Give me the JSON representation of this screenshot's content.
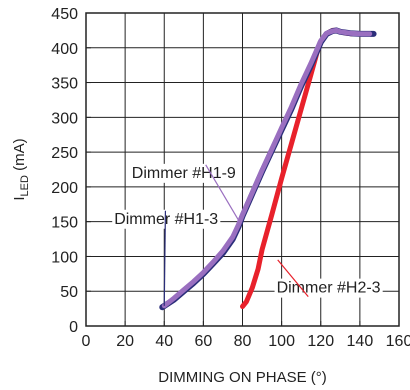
{
  "chart_data": {
    "type": "line",
    "xlabel": "DIMMING ON PHASE (°)",
    "ylabel_main": "I",
    "ylabel_sub": "LED",
    "ylabel_tail": " (mA)",
    "xlim": [
      0,
      160
    ],
    "ylim": [
      0,
      450
    ],
    "xticks": [
      "0",
      "20",
      "40",
      "60",
      "80",
      "100",
      "120",
      "140",
      "160"
    ],
    "yticks": [
      "0",
      "50",
      "100",
      "150",
      "200",
      "250",
      "300",
      "350",
      "400",
      "450"
    ],
    "grid": true,
    "series": [
      {
        "name": "Dimmer #H1-3",
        "color": "#2b2e7a",
        "x": [
          39,
          45,
          50,
          55,
          60,
          65,
          70,
          75,
          78,
          80,
          85,
          90,
          95,
          100,
          105,
          110,
          115,
          120,
          123,
          126,
          128,
          130,
          135,
          140,
          147
        ],
        "y": [
          27,
          38,
          50,
          62,
          75,
          90,
          105,
          125,
          143,
          158,
          190,
          222,
          252,
          282,
          312,
          345,
          375,
          408,
          420,
          424,
          425,
          423,
          421,
          420,
          420
        ]
      },
      {
        "name": "Dimmer #H1-9",
        "color": "#9a6fc0",
        "x": [
          40,
          45,
          50,
          55,
          60,
          65,
          70,
          75,
          78,
          80,
          85,
          90,
          95,
          100,
          105,
          110,
          115,
          120,
          123,
          126,
          128,
          130,
          135,
          140,
          145
        ],
        "y": [
          29,
          40,
          52,
          64,
          77,
          92,
          108,
          128,
          146,
          160,
          192,
          224,
          254,
          285,
          315,
          348,
          378,
          410,
          421,
          424,
          425,
          423,
          421,
          420,
          420
        ]
      },
      {
        "name": "Dimmer #H2-3",
        "color": "#e8212b",
        "x": [
          80,
          82,
          85,
          88,
          90,
          95,
          100,
          105,
          110,
          115,
          118,
          120,
          122,
          124,
          126,
          128,
          130,
          133,
          136
        ],
        "y": [
          28,
          35,
          55,
          82,
          110,
          160,
          212,
          262,
          312,
          362,
          392,
          408,
          417,
          422,
          425,
          425,
          423,
          421,
          420
        ]
      }
    ],
    "annotations": [
      {
        "text": "Dimmer #H1-9",
        "x": 50,
        "y": 213,
        "target_x": 78,
        "target_y": 152,
        "series": 1
      },
      {
        "text": "Dimmer #H1-3",
        "x": 41,
        "y": 147,
        "target_x": 40,
        "target_y": 29,
        "series": 0
      },
      {
        "text": "Dimmer #H2-3",
        "x": 124,
        "y": 48,
        "target_x": 98,
        "target_y": 95,
        "series": 2
      }
    ]
  }
}
